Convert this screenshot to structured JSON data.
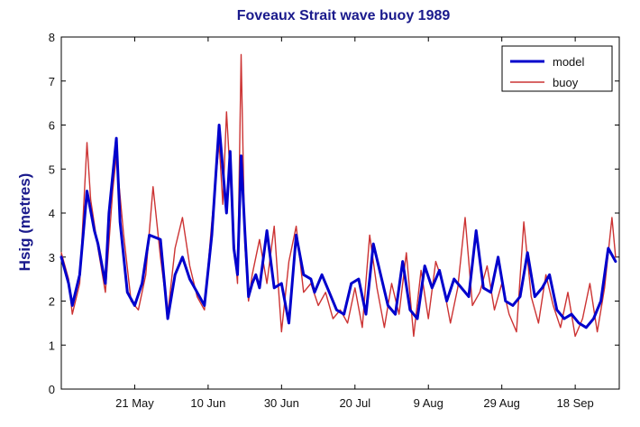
{
  "chart_data": {
    "type": "line",
    "title": "Foveaux Strait wave buoy 1989",
    "xlabel": "",
    "ylabel": "Hsig (metres)",
    "ylim": [
      0,
      8
    ],
    "yticks": [
      0,
      1,
      2,
      3,
      4,
      5,
      6,
      7,
      8
    ],
    "xlim": [
      "1989-05-01",
      "1989-09-30"
    ],
    "xticks": [
      {
        "date": "1989-05-21",
        "label": "21 May"
      },
      {
        "date": "1989-06-10",
        "label": "10 Jun"
      },
      {
        "date": "1989-06-30",
        "label": "30 Jun"
      },
      {
        "date": "1989-07-20",
        "label": "20 Jul"
      },
      {
        "date": "1989-08-09",
        "label": "9 Aug"
      },
      {
        "date": "1989-08-29",
        "label": "29 Aug"
      },
      {
        "date": "1989-09-18",
        "label": "18 Sep"
      }
    ],
    "grid": false,
    "legend_position": "top-right",
    "series": [
      {
        "name": "model",
        "color": "#0000cc",
        "x": [
          "1989-05-01",
          "1989-05-03",
          "1989-05-04",
          "1989-05-06",
          "1989-05-08",
          "1989-05-10",
          "1989-05-11",
          "1989-05-13",
          "1989-05-14",
          "1989-05-16",
          "1989-05-17",
          "1989-05-19",
          "1989-05-21",
          "1989-05-23",
          "1989-05-25",
          "1989-05-28",
          "1989-05-30",
          "1989-06-01",
          "1989-06-03",
          "1989-06-05",
          "1989-06-07",
          "1989-06-09",
          "1989-06-11",
          "1989-06-13",
          "1989-06-15",
          "1989-06-16",
          "1989-06-17",
          "1989-06-18",
          "1989-06-19",
          "1989-06-20",
          "1989-06-21",
          "1989-06-22",
          "1989-06-23",
          "1989-06-24",
          "1989-06-26",
          "1989-06-28",
          "1989-06-30",
          "1989-07-02",
          "1989-07-04",
          "1989-07-06",
          "1989-07-08",
          "1989-07-09",
          "1989-07-11",
          "1989-07-13",
          "1989-07-15",
          "1989-07-17",
          "1989-07-19",
          "1989-07-21",
          "1989-07-23",
          "1989-07-25",
          "1989-07-27",
          "1989-07-29",
          "1989-07-31",
          "1989-08-02",
          "1989-08-04",
          "1989-08-06",
          "1989-08-08",
          "1989-08-10",
          "1989-08-12",
          "1989-08-14",
          "1989-08-16",
          "1989-08-18",
          "1989-08-20",
          "1989-08-22",
          "1989-08-24",
          "1989-08-26",
          "1989-08-28",
          "1989-08-30",
          "1989-09-01",
          "1989-09-03",
          "1989-09-05",
          "1989-09-07",
          "1989-09-09",
          "1989-09-11",
          "1989-09-13",
          "1989-09-15",
          "1989-09-17",
          "1989-09-19",
          "1989-09-21",
          "1989-09-23",
          "1989-09-25",
          "1989-09-27",
          "1989-09-29"
        ],
        "values": [
          3.0,
          2.4,
          1.9,
          2.6,
          4.5,
          3.6,
          3.3,
          2.4,
          4.0,
          5.7,
          3.8,
          2.2,
          1.9,
          2.4,
          3.5,
          3.4,
          1.6,
          2.6,
          3.0,
          2.5,
          2.2,
          1.9,
          3.5,
          6.0,
          4.0,
          5.4,
          3.2,
          2.6,
          5.3,
          3.6,
          2.1,
          2.4,
          2.6,
          2.3,
          3.6,
          2.3,
          2.4,
          1.5,
          3.5,
          2.6,
          2.5,
          2.2,
          2.6,
          2.2,
          1.8,
          1.7,
          2.4,
          2.5,
          1.7,
          3.3,
          2.6,
          1.9,
          1.7,
          2.9,
          1.8,
          1.6,
          2.8,
          2.3,
          2.7,
          2.0,
          2.5,
          2.3,
          2.1,
          3.6,
          2.3,
          2.2,
          3.0,
          2.0,
          1.9,
          2.1,
          3.1,
          2.1,
          2.3,
          2.6,
          1.8,
          1.6,
          1.7,
          1.5,
          1.4,
          1.6,
          2.0,
          3.2,
          2.9
        ]
      },
      {
        "name": "buoy",
        "color": "#cc3333",
        "x": [
          "1989-05-01",
          "1989-05-03",
          "1989-05-04",
          "1989-05-06",
          "1989-05-08",
          "1989-05-09",
          "1989-05-11",
          "1989-05-13",
          "1989-05-15",
          "1989-05-16",
          "1989-05-18",
          "1989-05-20",
          "1989-05-22",
          "1989-05-24",
          "1989-05-26",
          "1989-05-28",
          "1989-05-30",
          "1989-06-01",
          "1989-06-03",
          "1989-06-05",
          "1989-06-07",
          "1989-06-09",
          "1989-06-11",
          "1989-06-13",
          "1989-06-14",
          "1989-06-15",
          "1989-06-17",
          "1989-06-18",
          "1989-06-19",
          "1989-06-20",
          "1989-06-21",
          "1989-06-22",
          "1989-06-24",
          "1989-06-26",
          "1989-06-28",
          "1989-06-30",
          "1989-07-02",
          "1989-07-04",
          "1989-07-06",
          "1989-07-08",
          "1989-07-10",
          "1989-07-12",
          "1989-07-14",
          "1989-07-16",
          "1989-07-18",
          "1989-07-20",
          "1989-07-22",
          "1989-07-24",
          "1989-07-26",
          "1989-07-28",
          "1989-07-30",
          "1989-08-01",
          "1989-08-03",
          "1989-08-05",
          "1989-08-07",
          "1989-08-09",
          "1989-08-11",
          "1989-08-13",
          "1989-08-15",
          "1989-08-17",
          "1989-08-19",
          "1989-08-21",
          "1989-08-23",
          "1989-08-25",
          "1989-08-27",
          "1989-08-29",
          "1989-08-31",
          "1989-09-02",
          "1989-09-04",
          "1989-09-06",
          "1989-09-08",
          "1989-09-10",
          "1989-09-12",
          "1989-09-14",
          "1989-09-16",
          "1989-09-18",
          "1989-09-20",
          "1989-09-22",
          "1989-09-24",
          "1989-09-26",
          "1989-09-28",
          "1989-09-29"
        ],
        "values": [
          3.1,
          2.5,
          1.7,
          2.4,
          5.6,
          4.3,
          3.2,
          2.2,
          4.5,
          5.3,
          3.5,
          2.0,
          1.8,
          2.6,
          4.6,
          3.0,
          1.7,
          3.2,
          3.9,
          2.8,
          2.1,
          1.8,
          3.8,
          5.6,
          4.2,
          6.3,
          3.4,
          2.4,
          7.6,
          3.3,
          2.0,
          2.6,
          3.4,
          2.4,
          3.7,
          1.3,
          2.9,
          3.7,
          2.2,
          2.4,
          1.9,
          2.2,
          1.6,
          1.8,
          1.5,
          2.3,
          1.4,
          3.5,
          2.3,
          1.4,
          2.4,
          1.7,
          3.1,
          1.2,
          2.7,
          1.6,
          2.9,
          2.4,
          1.5,
          2.3,
          3.9,
          1.9,
          2.2,
          2.8,
          1.8,
          2.4,
          1.7,
          1.3,
          3.8,
          2.1,
          1.5,
          2.6,
          1.9,
          1.4,
          2.2,
          1.2,
          1.6,
          2.4,
          1.3,
          2.3,
          3.9,
          3.0
        ]
      }
    ]
  }
}
